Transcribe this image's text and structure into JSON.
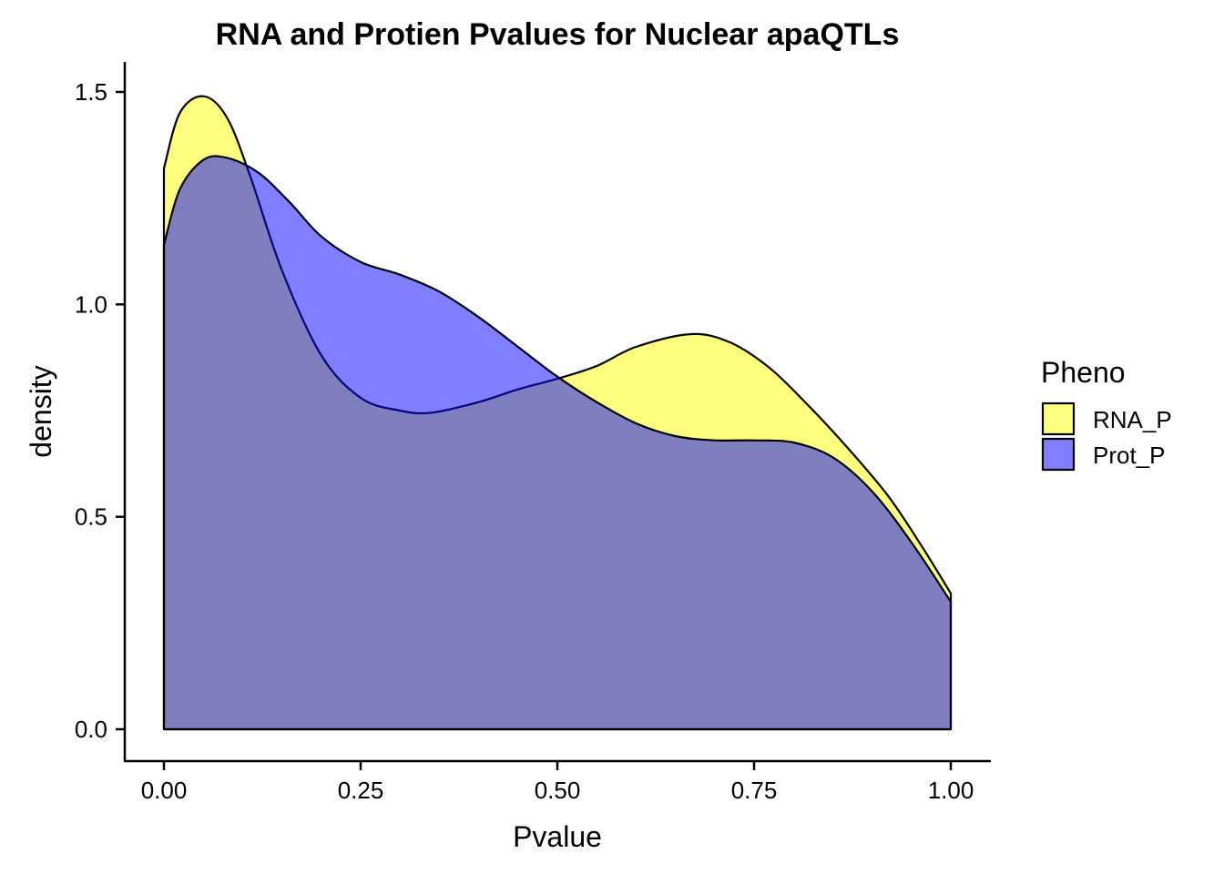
{
  "chart_data": {
    "type": "area",
    "title": "RNA and Protien Pvalues for Nuclear apaQTLs",
    "xlabel": "Pvalue",
    "ylabel": "density",
    "xlim": [
      0,
      1
    ],
    "ylim": [
      0,
      1.5
    ],
    "x_ticks": [
      "0.00",
      "0.25",
      "0.50",
      "0.75",
      "1.00"
    ],
    "y_ticks": [
      "0.0",
      "0.5",
      "1.0",
      "1.5"
    ],
    "grid": false,
    "legend": {
      "title": "Pheno",
      "position": "right"
    },
    "series": [
      {
        "name": "RNA_P",
        "color": "#ffff00",
        "x": [
          0.0,
          0.02,
          0.05,
          0.08,
          0.11,
          0.15,
          0.2,
          0.25,
          0.3,
          0.34,
          0.4,
          0.45,
          0.5,
          0.55,
          0.6,
          0.67,
          0.72,
          0.77,
          0.82,
          0.87,
          0.92,
          0.96,
          1.0
        ],
        "values": [
          1.32,
          1.45,
          1.49,
          1.44,
          1.3,
          1.08,
          0.88,
          0.78,
          0.75,
          0.745,
          0.77,
          0.8,
          0.825,
          0.855,
          0.9,
          0.93,
          0.91,
          0.85,
          0.76,
          0.66,
          0.55,
          0.44,
          0.32
        ]
      },
      {
        "name": "Prot_P",
        "color": "#0000ff",
        "x": [
          0.0,
          0.02,
          0.05,
          0.08,
          0.12,
          0.16,
          0.2,
          0.25,
          0.3,
          0.35,
          0.4,
          0.45,
          0.5,
          0.55,
          0.6,
          0.65,
          0.7,
          0.75,
          0.8,
          0.85,
          0.9,
          0.95,
          1.0
        ],
        "values": [
          1.14,
          1.27,
          1.34,
          1.345,
          1.31,
          1.24,
          1.16,
          1.1,
          1.07,
          1.03,
          0.97,
          0.9,
          0.83,
          0.77,
          0.72,
          0.69,
          0.68,
          0.68,
          0.675,
          0.64,
          0.56,
          0.44,
          0.3
        ]
      }
    ]
  }
}
